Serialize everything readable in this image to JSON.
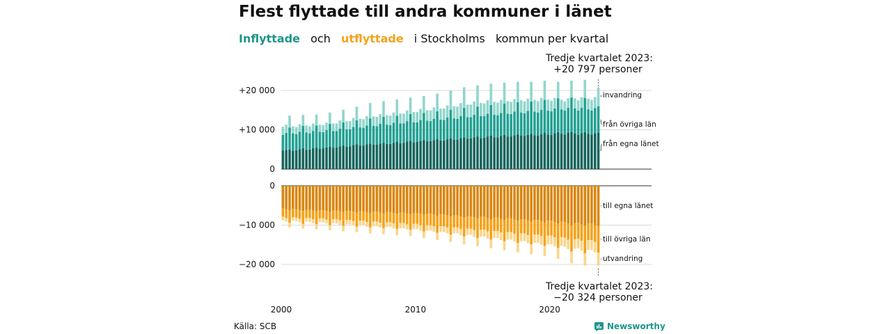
{
  "title": "Flest flyttade till andra kommuner i länet",
  "subtitle": {
    "in_label": "Inflyttade",
    "mid1": "och",
    "out_label": "utflyttade",
    "mid2": "i Stockholms",
    "mid3": "kommun",
    "mid4": "per",
    "mid5": "kvartal"
  },
  "callout_top": {
    "line1": "Tredje kvartalet 2023:",
    "line2": "+20 797 personer"
  },
  "callout_bottom": {
    "line1": "Tredje kvartalet 2023:",
    "line2": "−20 324 personer"
  },
  "source": "Källa: SCB",
  "brand": "Newsworthy",
  "colors": {
    "in_egna": "#17665e",
    "in_ovriga": "#23a193",
    "in_invandring": "#92d6cd",
    "out_egna": "#d98710",
    "out_ovriga": "#f5a21b",
    "out_utvandring": "#fad68c",
    "grid": "#d9d9d9",
    "axis": "#333333"
  },
  "chart_data": {
    "type": "bar",
    "stacked": true,
    "x_ticks": [
      "2000",
      "2010",
      "2020"
    ],
    "top_panel": {
      "y_ticks": [
        "+20 000",
        "+10 000",
        "0"
      ],
      "ylim": [
        0,
        22000
      ],
      "series_labels": [
        "invandring",
        "från övriga län",
        "från egna länet"
      ]
    },
    "bottom_panel": {
      "y_ticks": [
        "0",
        "−10 000",
        "−20 000"
      ],
      "ylim": [
        -22000,
        0
      ],
      "series_labels": [
        "till egna länet",
        "till övriga län",
        "utvandring"
      ]
    },
    "start_year": 2000,
    "quarters": 95,
    "series": [
      {
        "name": "från egna länet",
        "panel": "top",
        "values": [
          4700,
          4900,
          5000,
          4600,
          4800,
          5100,
          5300,
          4900,
          5000,
          5300,
          5400,
          5200,
          5300,
          5500,
          5700,
          5400,
          5500,
          5800,
          6000,
          5700,
          5800,
          6100,
          6300,
          6000,
          6000,
          6300,
          6500,
          6200,
          6200,
          6500,
          6700,
          6400,
          6400,
          6700,
          6900,
          6600,
          6700,
          7000,
          7200,
          6800,
          6900,
          7200,
          7400,
          7100,
          7100,
          7400,
          7600,
          7300,
          7300,
          7600,
          7800,
          7500,
          7500,
          7900,
          8100,
          7700,
          7800,
          8100,
          8300,
          7900,
          8000,
          8300,
          8500,
          8100,
          8100,
          8400,
          8700,
          8300,
          8300,
          8600,
          8900,
          8500,
          8400,
          8700,
          9000,
          8600,
          8500,
          8900,
          9200,
          8800,
          8700,
          9100,
          9400,
          9000,
          8800,
          9200,
          9500,
          9100,
          8700,
          9100,
          9400,
          9000,
          8800,
          9100,
          9200
        ]
      },
      {
        "name": "från övriga län",
        "panel": "top",
        "values": [
          4000,
          4300,
          5600,
          4500,
          4100,
          4400,
          5700,
          4400,
          4100,
          4400,
          5700,
          4300,
          4100,
          4400,
          5800,
          4300,
          4200,
          4500,
          5900,
          4400,
          4300,
          4600,
          6100,
          4600,
          4500,
          4800,
          6400,
          4800,
          4700,
          5000,
          6600,
          4900,
          4800,
          5100,
          6700,
          5000,
          4900,
          5200,
          6800,
          5100,
          5000,
          5300,
          6900,
          5200,
          5100,
          5400,
          7100,
          5300,
          5200,
          5500,
          7300,
          5400,
          5300,
          5600,
          7500,
          5500,
          5400,
          5700,
          7600,
          5600,
          5500,
          5800,
          7800,
          5700,
          5600,
          5900,
          8000,
          5800,
          5700,
          6000,
          8100,
          5900,
          5800,
          6100,
          8200,
          6000,
          5900,
          6200,
          8400,
          6100,
          6000,
          6300,
          8600,
          6200,
          6100,
          6400,
          8700,
          6300,
          6200,
          6500,
          8700,
          6200,
          6100,
          6400,
          6800
        ]
      },
      {
        "name": "invandring",
        "panel": "top",
        "values": [
          2100,
          2100,
          3000,
          1800,
          1800,
          1900,
          2800,
          1800,
          1800,
          1900,
          2800,
          1800,
          1800,
          1900,
          2900,
          1900,
          1900,
          2100,
          3200,
          2100,
          2100,
          2300,
          3500,
          2200,
          2200,
          2400,
          3900,
          2400,
          2400,
          2500,
          4000,
          2400,
          2400,
          2600,
          4100,
          2500,
          2500,
          2700,
          4200,
          2600,
          2600,
          2800,
          4300,
          2700,
          2700,
          2900,
          4500,
          2800,
          2900,
          3100,
          4900,
          3100,
          3100,
          3300,
          5200,
          3200,
          3200,
          3400,
          5400,
          3300,
          3200,
          3400,
          5400,
          3300,
          3200,
          3300,
          5300,
          3200,
          3100,
          3200,
          5200,
          3100,
          3000,
          3100,
          5000,
          3000,
          2900,
          3000,
          4900,
          2800,
          2700,
          2700,
          4200,
          2400,
          2300,
          2400,
          4300,
          2600,
          2600,
          2700,
          4600,
          2700,
          2700,
          2800,
          4797
        ]
      },
      {
        "name": "till egna länet",
        "panel": "bottom",
        "values": [
          -5800,
          -6000,
          -6200,
          -5900,
          -6000,
          -6200,
          -6400,
          -6100,
          -6100,
          -6300,
          -6500,
          -6200,
          -6200,
          -6400,
          -6600,
          -6300,
          -6300,
          -6500,
          -6700,
          -6400,
          -6400,
          -6600,
          -6800,
          -6500,
          -6500,
          -6700,
          -6900,
          -6600,
          -6600,
          -6800,
          -7000,
          -6700,
          -6700,
          -6900,
          -7100,
          -6800,
          -6800,
          -7000,
          -7200,
          -6900,
          -6900,
          -7100,
          -7400,
          -7100,
          -7100,
          -7300,
          -7600,
          -7300,
          -7300,
          -7500,
          -7800,
          -7500,
          -7500,
          -7800,
          -8100,
          -7700,
          -7700,
          -8000,
          -8300,
          -7900,
          -7900,
          -8200,
          -8500,
          -8100,
          -8100,
          -8400,
          -8700,
          -8300,
          -8300,
          -8600,
          -8900,
          -8500,
          -8500,
          -8800,
          -9100,
          -8700,
          -8700,
          -9000,
          -9300,
          -8900,
          -8900,
          -9200,
          -9600,
          -9100,
          -9200,
          -9600,
          -10000,
          -9500,
          -9400,
          -9800,
          -10200,
          -9600,
          -9600,
          -10000,
          -10200
        ]
      },
      {
        "name": "till övriga län",
        "panel": "bottom",
        "values": [
          -2100,
          -2200,
          -3200,
          -2100,
          -2100,
          -2200,
          -3300,
          -2100,
          -2100,
          -2200,
          -3300,
          -2100,
          -2100,
          -2200,
          -3400,
          -2200,
          -2200,
          -2300,
          -3500,
          -2300,
          -2300,
          -2400,
          -3600,
          -2400,
          -2400,
          -2500,
          -3700,
          -2500,
          -2500,
          -2600,
          -3800,
          -2600,
          -2600,
          -2700,
          -3900,
          -2700,
          -2700,
          -2800,
          -4000,
          -2800,
          -2800,
          -2900,
          -4200,
          -2900,
          -2900,
          -3000,
          -4400,
          -3000,
          -3000,
          -3100,
          -4600,
          -3100,
          -3100,
          -3200,
          -4800,
          -3200,
          -3200,
          -3300,
          -5000,
          -3300,
          -3300,
          -3400,
          -5200,
          -3400,
          -3400,
          -3500,
          -5400,
          -3500,
          -3500,
          -3600,
          -5600,
          -3600,
          -3600,
          -3700,
          -5800,
          -3700,
          -3700,
          -3800,
          -6000,
          -3800,
          -3800,
          -3900,
          -6200,
          -3900,
          -4000,
          -4100,
          -6700,
          -4100,
          -4100,
          -4200,
          -7000,
          -4200,
          -4200,
          -4300,
          -6800
        ]
      },
      {
        "name": "utvandring",
        "panel": "bottom",
        "values": [
          -900,
          -900,
          -1200,
          -900,
          -900,
          -900,
          -1200,
          -900,
          -1000,
          -1000,
          -1300,
          -1000,
          -1000,
          -1000,
          -1300,
          -1000,
          -1100,
          -1100,
          -1400,
          -1100,
          -1100,
          -1100,
          -1400,
          -1100,
          -1100,
          -1200,
          -1500,
          -1200,
          -1200,
          -1200,
          -1500,
          -1200,
          -1200,
          -1300,
          -1600,
          -1300,
          -1300,
          -1300,
          -1600,
          -1300,
          -1300,
          -1400,
          -1700,
          -1400,
          -1400,
          -1400,
          -1800,
          -1400,
          -1500,
          -1500,
          -1900,
          -1500,
          -1500,
          -1600,
          -2000,
          -1600,
          -1600,
          -1700,
          -2100,
          -1700,
          -1700,
          -1800,
          -2200,
          -1800,
          -1800,
          -1900,
          -2300,
          -1900,
          -1900,
          -2000,
          -2400,
          -2000,
          -2000,
          -2100,
          -2500,
          -2100,
          -2100,
          -2200,
          -2600,
          -2200,
          -2200,
          -2300,
          -2800,
          -2300,
          -2300,
          -2400,
          -3000,
          -2400,
          -2400,
          -2500,
          -3100,
          -2500,
          -2500,
          -2600,
          -3324
        ]
      }
    ]
  }
}
